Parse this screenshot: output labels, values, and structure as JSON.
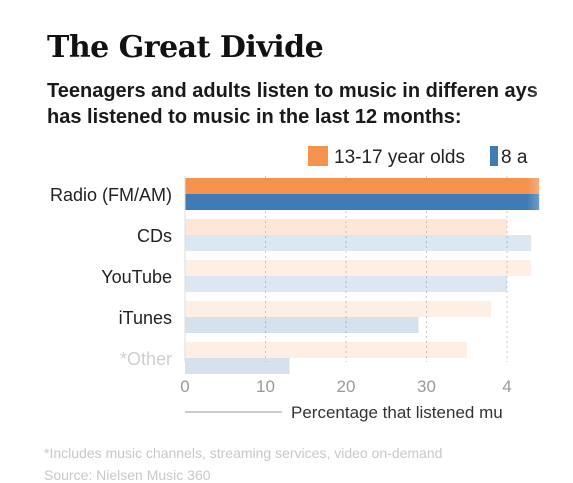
{
  "title": "The Great Divide",
  "subtitle_line1": "Teenagers and adults listen to music in differen ays",
  "subtitle_line2": "has listened to music in the last 12 months:",
  "legend": {
    "series1": "13-17 year olds",
    "series2": "8 a"
  },
  "colors": {
    "series1": "#f5924e",
    "series2": "#3f7cb3",
    "grid": "#bbbbbb",
    "axis_text": "#9a9a9a"
  },
  "footnote_line1": "*Includes music channels, streaming services, video on-demand",
  "footnote_line2": "Source: Nielsen Music 360",
  "chart_data": {
    "type": "bar",
    "orientation": "horizontal",
    "title": "The Great Divide",
    "subtitle": "Teenagers and adults listen to music in differen ays has listened to music in the last 12 months:",
    "categories": [
      "Radio (FM/AM)",
      "CDs",
      "YouTube",
      "iTunes",
      "*Other"
    ],
    "series": [
      {
        "name": "13-17 year olds",
        "values": [
          44,
          40,
          43,
          38,
          35
        ]
      },
      {
        "name": "8 a",
        "values": [
          44,
          43,
          40,
          29,
          13
        ]
      }
    ],
    "x_ticks": [
      "0",
      "10",
      "20",
      "30",
      "4"
    ],
    "xlim": [
      0,
      44
    ],
    "xlabel": "Percentage that listened mu",
    "grid": true,
    "legend_position": "top"
  }
}
